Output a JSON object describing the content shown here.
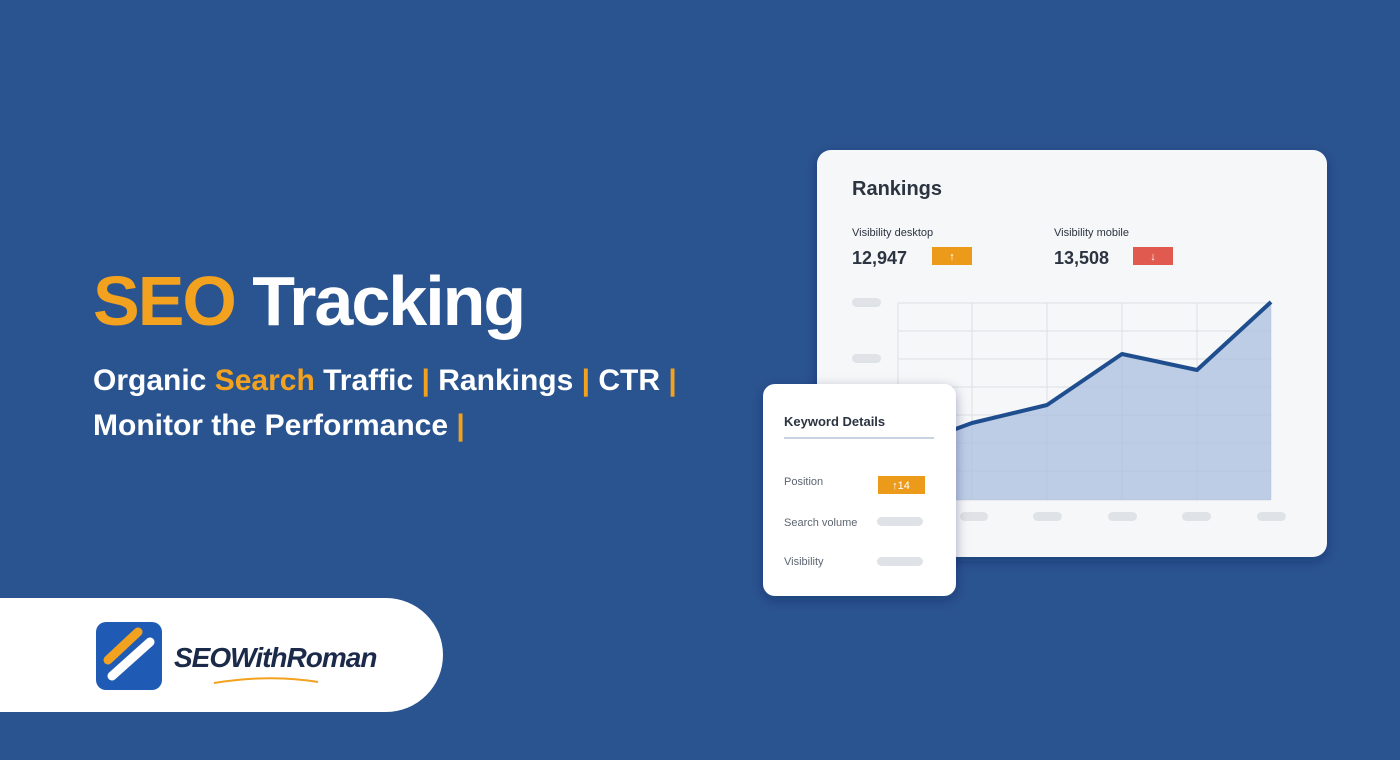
{
  "headline": {
    "highlight": "SEO",
    "rest": "Tracking"
  },
  "subtitle": {
    "line1": [
      "Organic",
      "Search",
      "Traffic",
      "|",
      "Rankings",
      "|",
      "CTR",
      "|"
    ],
    "line2": [
      "Monitor the Performance",
      "|"
    ]
  },
  "brand": {
    "name": "SEOWithRoman"
  },
  "rankings_card": {
    "title": "Rankings",
    "metrics": [
      {
        "label": "Visibility desktop",
        "value": "12,947",
        "badge": "↑"
      },
      {
        "label": "Visibility mobile",
        "value": "13,508",
        "badge": "↓"
      }
    ]
  },
  "keyword_card": {
    "title": "Keyword Details",
    "rows": [
      {
        "label": "Position",
        "badge": "↑14"
      },
      {
        "label": "Search volume"
      },
      {
        "label": "Visibility"
      }
    ]
  }
}
